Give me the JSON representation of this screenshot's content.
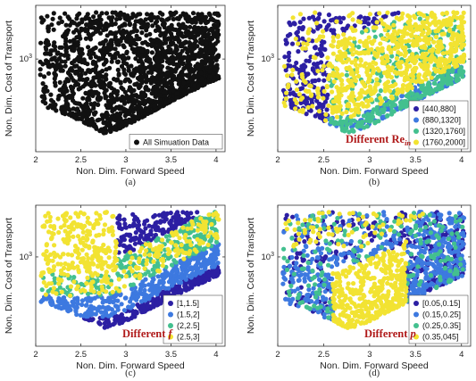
{
  "colors": {
    "black": "#111111",
    "c1": "#2c1fa3",
    "c2": "#3d79e0",
    "c3": "#43c08f",
    "c4": "#f2e332",
    "annotation": "#b01a1a"
  },
  "chart_data": [
    {
      "type": "scatter",
      "caption": "(a)",
      "xlabel": "Non. Dim. Forward Speed",
      "ylabel": "Non. Dim. Cost of Transport",
      "xlim": [
        2,
        4.1
      ],
      "ylim": [
        150,
        3000
      ],
      "yscale": "log",
      "xticks": [
        "2",
        "2.5",
        "3",
        "3.5",
        "4"
      ],
      "ytick_label": "10",
      "ytick_exp": "3",
      "grid": false,
      "legend_position": "bottom-right",
      "legend": [
        "All Simuation Data"
      ],
      "annotation_main": "",
      "annotation_sub": "",
      "series": [
        {
          "name": "All Simuation Data",
          "color": "#111111",
          "x": [
            2.05,
            2.3,
            2.45,
            2.6,
            2.75,
            2.85,
            3.0,
            3.2,
            3.4,
            3.6,
            3.8,
            4.0
          ],
          "y": [
            1500,
            700,
            420,
            300,
            260,
            280,
            400,
            600,
            800,
            1100,
            1500,
            1900
          ]
        }
      ]
    },
    {
      "type": "scatter",
      "caption": "(b)",
      "xlabel": "Non. Dim. Forward Speed",
      "ylabel": "Non. Dim. Cost of Transport",
      "xlim": [
        2,
        4.1
      ],
      "ylim": [
        150,
        3000
      ],
      "yscale": "log",
      "xticks": [
        "2",
        "2.5",
        "3",
        "3.5",
        "4"
      ],
      "ytick_label": "10",
      "ytick_exp": "3",
      "grid": false,
      "legend_position": "bottom-right",
      "legend": [
        "[440,880]",
        "(880,1320]",
        "(1320,1760]",
        "(1760,2000]"
      ],
      "annotation_main": "Different Re",
      "annotation_sub": "in",
      "series": [
        {
          "name": "[440,880]",
          "color": "#2c1fa3"
        },
        {
          "name": "(880,1320]",
          "color": "#3d79e0"
        },
        {
          "name": "(1320,1760]",
          "color": "#43c08f"
        },
        {
          "name": "(1760,2000]",
          "color": "#f2e332"
        }
      ]
    },
    {
      "type": "scatter",
      "caption": "(c)",
      "xlabel": "Non. Dim. Forward Speed",
      "ylabel": "Non. Dim. Cost of Transport",
      "xlim": [
        2,
        4.1
      ],
      "ylim": [
        150,
        3000
      ],
      "yscale": "log",
      "xticks": [
        "2",
        "2.5",
        "3",
        "3.5",
        "4"
      ],
      "ytick_label": "10",
      "ytick_exp": "3",
      "grid": false,
      "legend_position": "bottom-right",
      "legend": [
        "[1,1.5]",
        "(1.5,2]",
        "(2,2.5]",
        "(2.5,3]"
      ],
      "annotation_main": "Different f",
      "annotation_sub": "",
      "series": [
        {
          "name": "[1,1.5]",
          "color": "#2c1fa3"
        },
        {
          "name": "(1.5,2]",
          "color": "#3d79e0"
        },
        {
          "name": "(2,2.5]",
          "color": "#43c08f"
        },
        {
          "name": "(2.5,3]",
          "color": "#f2e332"
        }
      ]
    },
    {
      "type": "scatter",
      "caption": "(d)",
      "xlabel": "Non. Dim. Forward Speed",
      "ylabel": "Non. Dim. Cost of Transport",
      "xlim": [
        2,
        4.1
      ],
      "ylim": [
        150,
        3000
      ],
      "yscale": "log",
      "xticks": [
        "2",
        "2.5",
        "3",
        "3.5",
        "4"
      ],
      "ytick_label": "10",
      "ytick_exp": "3",
      "grid": false,
      "legend_position": "bottom-right",
      "legend": [
        "[0.05,0.15]",
        "(0.15,0.25]",
        "(0.25,0.35]",
        "(0.35,045]"
      ],
      "annotation_main": "Different p",
      "annotation_sub": "",
      "series": [
        {
          "name": "[0.05,0.15]",
          "color": "#2c1fa3"
        },
        {
          "name": "(0.15,0.25]",
          "color": "#3d79e0"
        },
        {
          "name": "(0.25,0.35]",
          "color": "#43c08f"
        },
        {
          "name": "(0.35,045]",
          "color": "#f2e332"
        }
      ]
    }
  ]
}
